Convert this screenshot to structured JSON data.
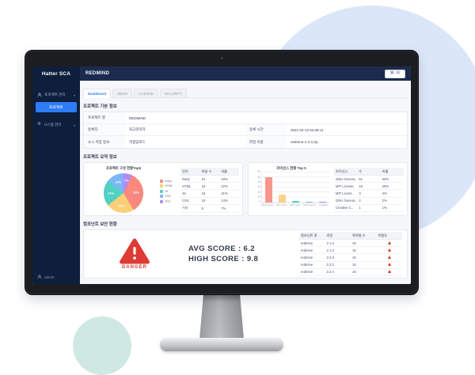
{
  "app": {
    "logo": "Hatter SCA",
    "page_title": "REDMIND",
    "view_toggle_icons": {
      "grid": "▦",
      "panel": "▤"
    },
    "accent_color": "#2c7df6",
    "danger_color": "#dd3b34",
    "sidebar_bg": "#0d1f3c",
    "header_bg": "#1c2b4d"
  },
  "sidebar": {
    "items": [
      {
        "label": "프로젝트 관리",
        "icon": "person-icon",
        "active": false
      },
      {
        "label": "프로젝트",
        "icon": null,
        "active": true
      },
      {
        "label": "시스템 관리",
        "icon": "gear-icon",
        "active": false
      }
    ],
    "user": "admin"
  },
  "tabs": [
    {
      "label": "Dashboard",
      "active": true
    },
    {
      "label": "SBOM",
      "active": false
    },
    {
      "label": "LICENSE",
      "active": false
    },
    {
      "label": "SECURITY",
      "active": false
    }
  ],
  "sections": {
    "basic_info": {
      "title": "프로젝트 기본 정보",
      "rows": [
        {
          "label": "프로젝트 명",
          "value": "REDMIND",
          "label2": "",
          "value2": ""
        },
        {
          "label": "등록자",
          "value": "최고관리자",
          "label2": "등록 시간",
          "value2": "2021-04-13 04:38:11"
        },
        {
          "label": "소스 저장 정보",
          "value": "직접업로드",
          "label2": "파일 이름",
          "value2": "redmine-1.2.3.zip"
        }
      ]
    },
    "summary": {
      "title": "프로젝트 요약 정보"
    },
    "security": {
      "title": "컴포넌트 보안 현황",
      "danger_label": "DANGER",
      "avg_score": "AVG SCORE : 6.2",
      "high_score": "HIGH SCORE : 9.8"
    }
  },
  "chart_data": [
    {
      "type": "pie",
      "title": "프로젝트 구성 현황Top5",
      "rotation_deg": 26,
      "legend_position": "right",
      "series": [
        {
          "name": "Ruby",
          "value": 24,
          "pct": "33%",
          "color": "#f9897e"
        },
        {
          "name": "HTML",
          "value": 16,
          "pct": "22%",
          "color": "#fbcf77"
        },
        {
          "name": "JS",
          "value": 15,
          "pct": "21%",
          "color": "#52d0c2"
        },
        {
          "name": "CSS",
          "value": 10,
          "pct": "14%",
          "color": "#7db6f9"
        },
        {
          "name": "기타",
          "value": 5,
          "pct": "7%",
          "color": "#b28af2"
        }
      ]
    },
    {
      "type": "bar",
      "title": "라이선스 현황 Top 5",
      "categories": [
        "GNU Gener..",
        "MIT Licen..",
        "MIT Licen..",
        "GNU Gener..",
        "Creative.."
      ],
      "values": [
        51,
        16,
        3,
        2,
        1
      ],
      "colors": [
        "#f9968c",
        "#fbd28b",
        "#56d0c2",
        "#7db6f9",
        "#b28af2"
      ],
      "ylim": [
        0,
        60
      ],
      "yticks": [
        0,
        10,
        20,
        30,
        40,
        50,
        60
      ],
      "grid": true
    }
  ],
  "language_table": {
    "headers": [
      "언어",
      "파일 수",
      "비율"
    ],
    "rows": [
      [
        "Ruby",
        "24",
        "33%"
      ],
      [
        "HTML",
        "16",
        "22%"
      ],
      [
        "JS",
        "15",
        "21%"
      ],
      [
        "CSS",
        "10",
        "14%"
      ],
      [
        "기타",
        "5",
        "7%"
      ]
    ]
  },
  "license_table": {
    "headers": [
      "라이선스",
      "수",
      "비율"
    ],
    "rows": [
      [
        "GNU Genera..",
        "51",
        "63%"
      ],
      [
        "MIT License",
        "16",
        "20%"
      ],
      [
        "MIT Licens..",
        "3",
        "4%"
      ],
      [
        "GNU Genera..",
        "2",
        "2%"
      ],
      [
        "Creative C..",
        "1",
        "1%"
      ]
    ]
  },
  "component_table": {
    "headers": [
      "컴포넌트 명",
      "버전",
      "취약점 수",
      "위험도"
    ],
    "rows": [
      [
        "redmine",
        "2.1.4",
        "16",
        "warn"
      ],
      [
        "redmine",
        "2.1.3",
        "16",
        "warn"
      ],
      [
        "redmine",
        "2.2.0",
        "16",
        "warn"
      ],
      [
        "redmine",
        "2.2.2",
        "16",
        "warn"
      ],
      [
        "redmine",
        "2.2.4",
        "16",
        "warn"
      ]
    ]
  }
}
